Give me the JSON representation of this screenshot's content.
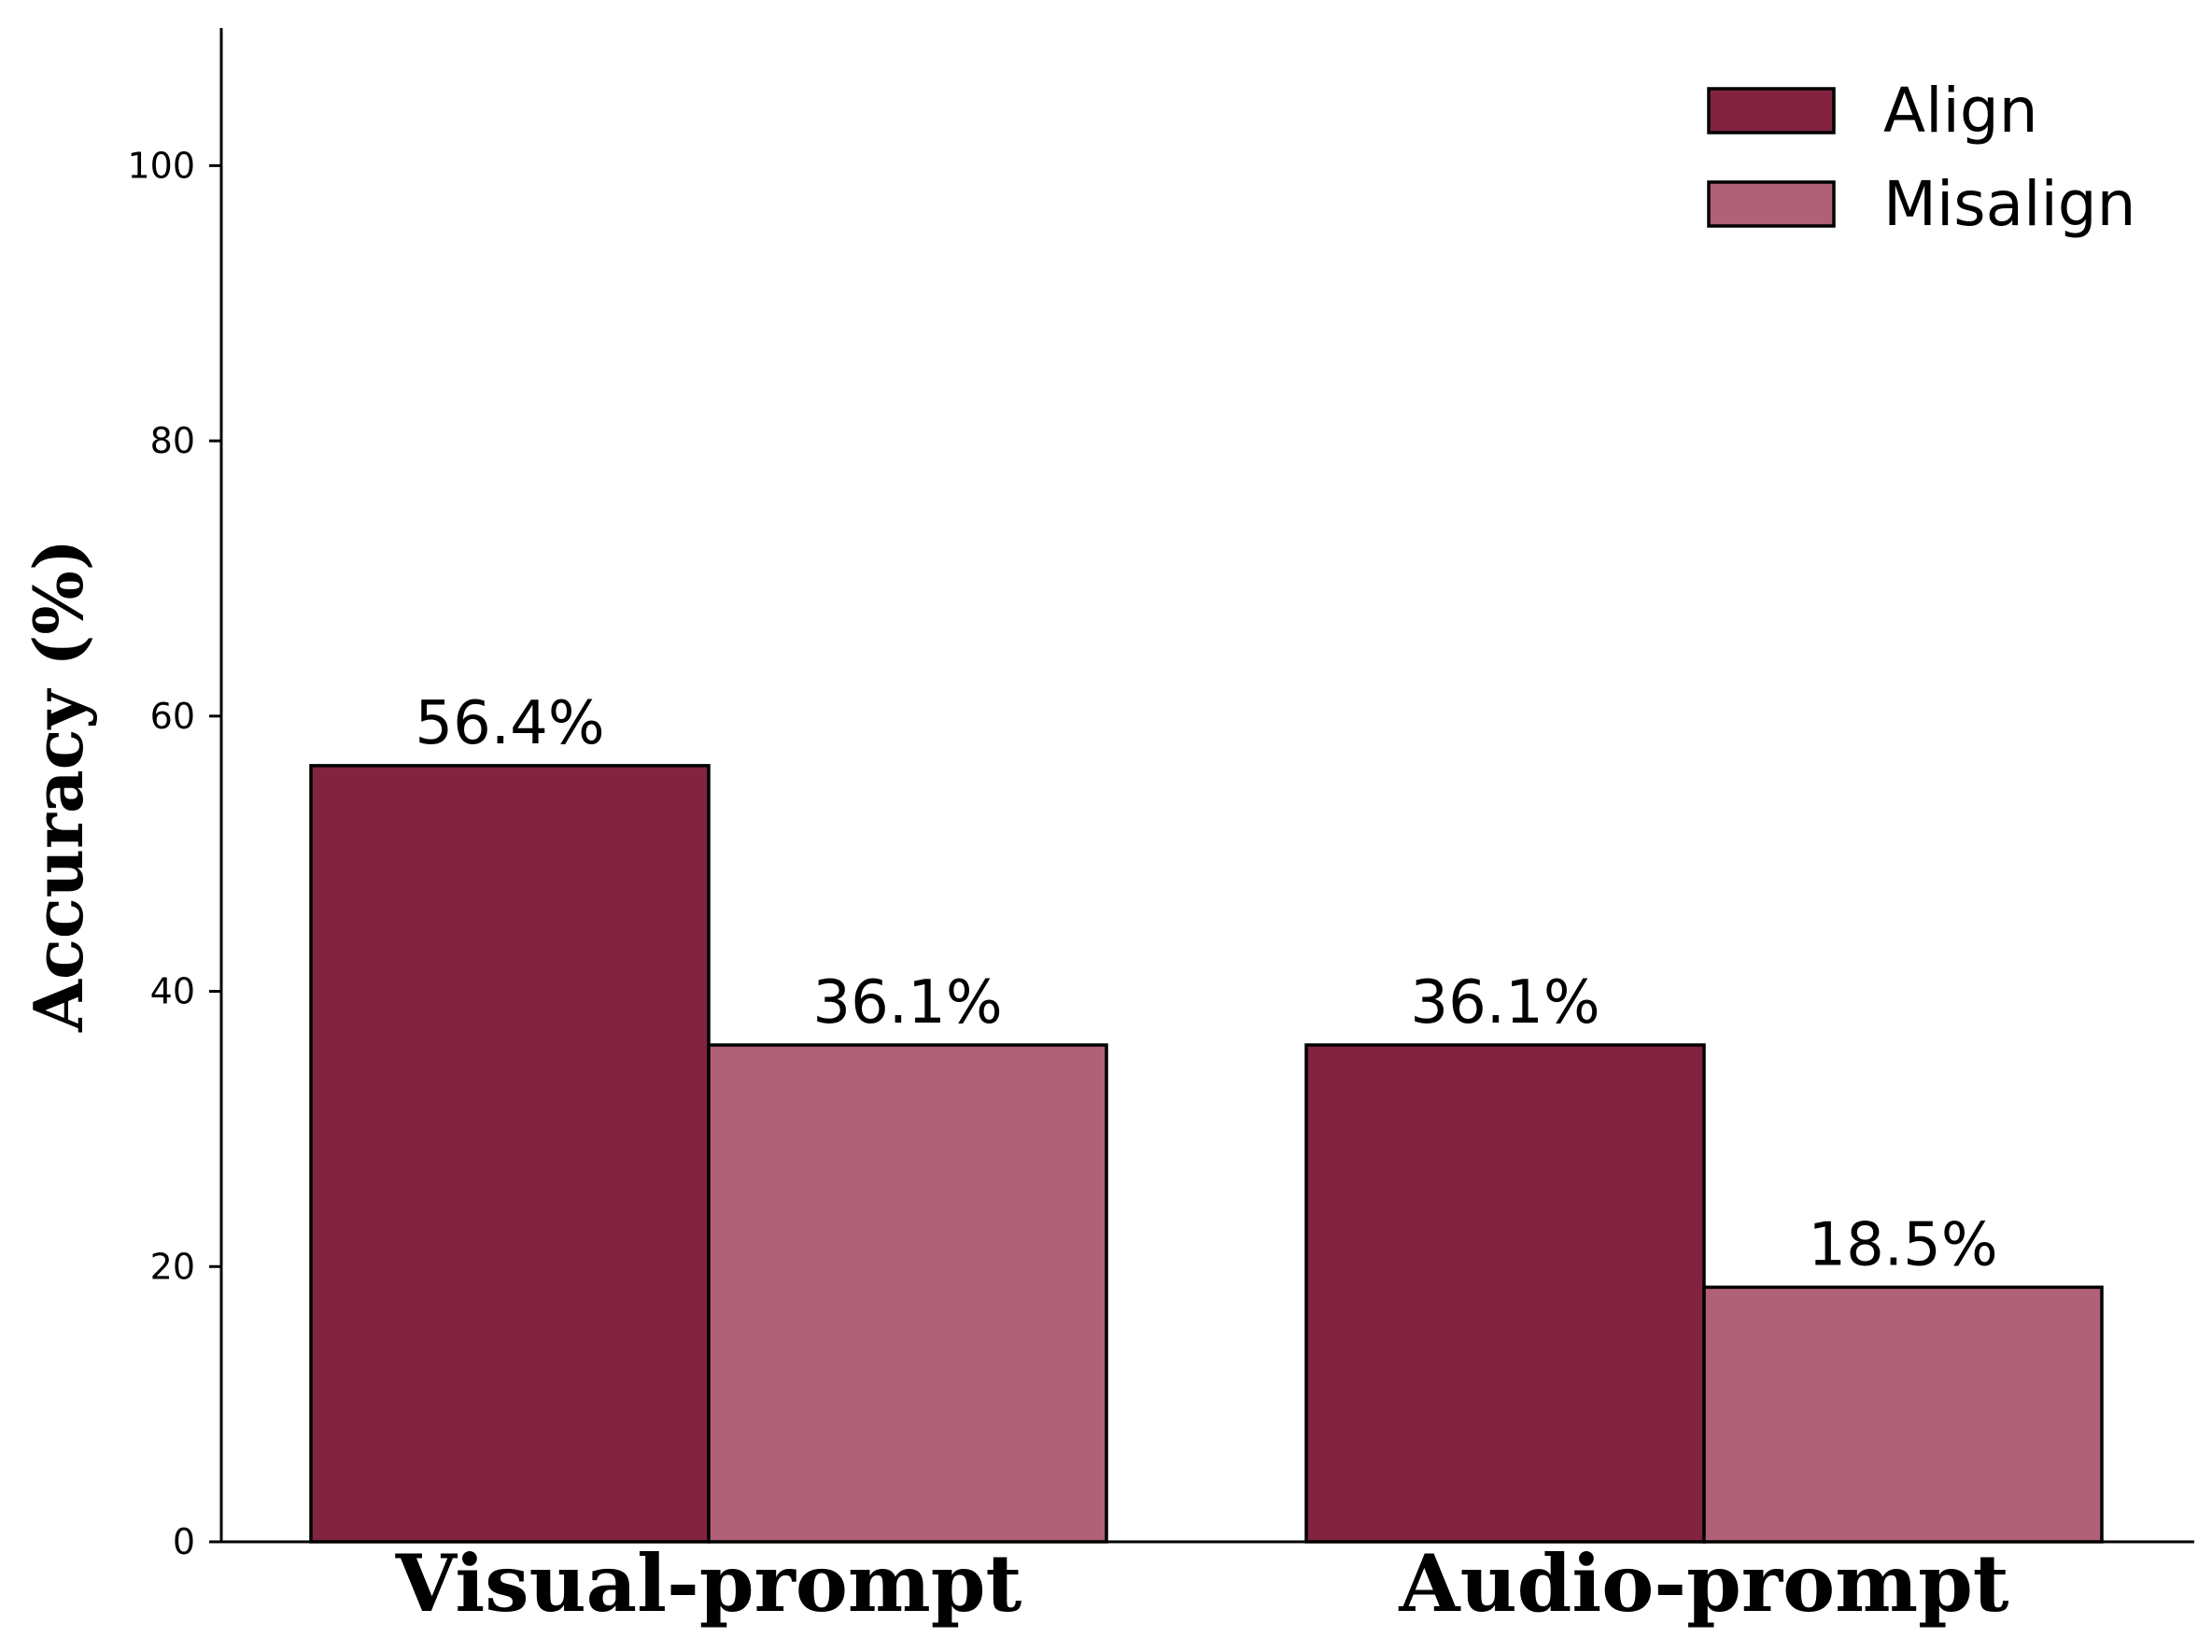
{
  "chart_data": {
    "type": "bar",
    "title": "",
    "xlabel": "",
    "ylabel": "Accuracy (%)",
    "categories": [
      "Visual-prompt",
      "Audio-prompt"
    ],
    "series": [
      {
        "name": "Align",
        "values": [
          56.4,
          36.1
        ],
        "labels": [
          "56.4%",
          "36.1%"
        ],
        "color": "#82243f"
      },
      {
        "name": "Misalign",
        "values": [
          36.1,
          18.5
        ],
        "labels": [
          "36.1%",
          "18.5%"
        ],
        "color": "#b06077"
      }
    ],
    "ylim": [
      0,
      110
    ],
    "yticks": [
      0,
      20,
      40,
      60,
      80,
      100
    ],
    "grid": false,
    "legend_position": "top-right"
  }
}
